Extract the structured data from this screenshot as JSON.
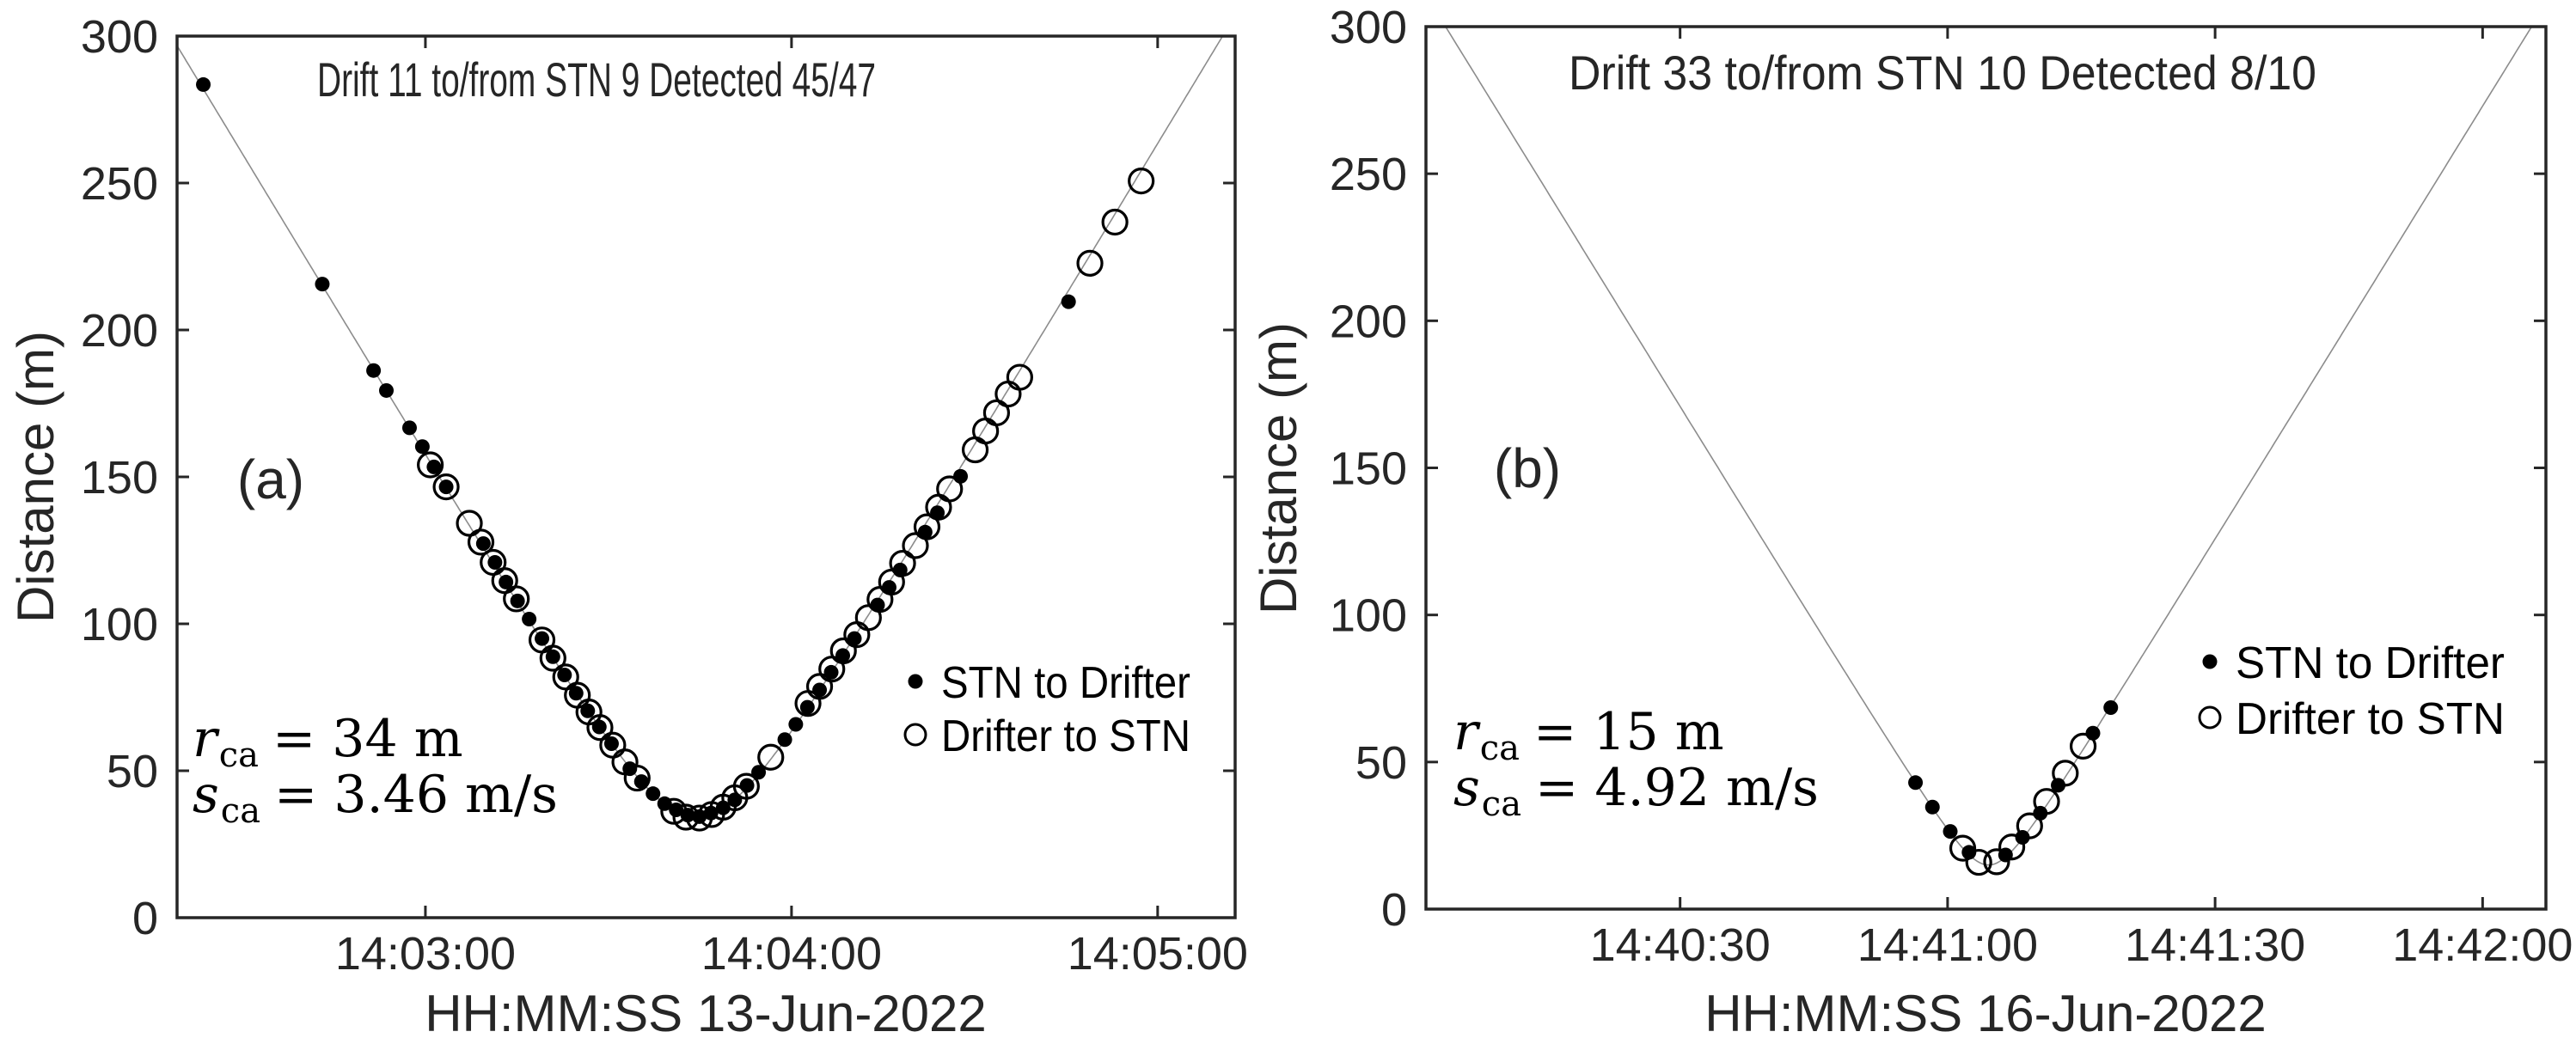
{
  "chart_data": [
    {
      "type": "scatter",
      "panel_label": "(a)",
      "title": "Drift 11 to/from STN 9 Detected 45/47",
      "xlabel": "HH:MM:SS 13-Jun-2022",
      "ylabel": "Distance (m)",
      "xlim": [
        "14:02:19.3",
        "14:05:12.7"
      ],
      "ylim": [
        0,
        300
      ],
      "xticks": [
        "14:03:00",
        "14:04:00",
        "14:05:00"
      ],
      "yticks": [
        0,
        50,
        100,
        150,
        200,
        250,
        300
      ],
      "grid": false,
      "legend_position": "right",
      "annotation": {
        "r_label": "r",
        "r_sub": "ca",
        "r_value": "= 34 m",
        "s_label": "s",
        "s_sub": "ca",
        "s_value": "= 3.46 m/s"
      },
      "curve": {
        "r_ca": 34,
        "s_ca": 3.46,
        "t_ca": "14:03:44.5",
        "color": "#8c8c8c"
      },
      "series": [
        {
          "name": "STN to Drifter",
          "marker": "filled",
          "color": "#000000",
          "points": [
            [
              "14:02:23.6",
              283.5
            ],
            [
              "14:02:43.1",
              215.6
            ],
            [
              "14:02:51.5",
              186.2
            ],
            [
              "14:02:53.6",
              179.4
            ],
            [
              "14:02:57.4",
              166.7
            ],
            [
              "14:02:59.5",
              160.3
            ],
            [
              "14:03:01.4",
              153.4
            ],
            [
              "14:03:03.4",
              146.6
            ],
            [
              "14:03:09.5",
              127.3
            ],
            [
              "14:03:11.4",
              120.9
            ],
            [
              "14:03:13.2",
              114.2
            ],
            [
              "14:03:15.1",
              107.8
            ],
            [
              "14:03:17.0",
              101.6
            ],
            [
              "14:03:19.1",
              95.0
            ],
            [
              "14:03:20.9",
              88.8
            ],
            [
              "14:03:22.8",
              82.6
            ],
            [
              "14:03:24.7",
              76.4
            ],
            [
              "14:03:26.6",
              70.4
            ],
            [
              "14:03:28.5",
              64.9
            ],
            [
              "14:03:30.5",
              59.2
            ],
            [
              "14:03:33.5",
              50.7
            ],
            [
              "14:03:35.4",
              46.3
            ],
            [
              "14:03:37.3",
              42.2
            ],
            [
              "14:03:39.2",
              38.8
            ],
            [
              "14:03:41.1",
              36.7
            ],
            [
              "14:03:43.0",
              34.9
            ],
            [
              "14:03:44.9",
              34.4
            ],
            [
              "14:03:46.8",
              35.6
            ],
            [
              "14:03:48.8",
              37.4
            ],
            [
              "14:03:50.7",
              40.1
            ],
            [
              "14:03:52.7",
              45.0
            ],
            [
              "14:03:54.6",
              49.5
            ],
            [
              "14:03:58.9",
              60.6
            ],
            [
              "14:04:00.7",
              65.8
            ],
            [
              "14:04:02.6",
              71.6
            ],
            [
              "14:04:04.6",
              77.5
            ],
            [
              "14:04:06.5",
              83.5
            ],
            [
              "14:04:08.4",
              89.2
            ],
            [
              "14:04:10.3",
              95.0
            ],
            [
              "14:04:14.1",
              106.4
            ],
            [
              "14:04:16.0",
              112.4
            ],
            [
              "14:04:17.8",
              118.3
            ],
            [
              "14:04:21.9",
              131.2
            ],
            [
              "14:04:23.9",
              137.8
            ],
            [
              "14:04:27.7",
              150.2
            ],
            [
              "14:04:45.4",
              209.6
            ]
          ]
        },
        {
          "name": "Drifter to STN",
          "marker": "open",
          "color": "#000000",
          "points": [
            [
              "14:03:00.8",
              154.1
            ],
            [
              "14:03:03.4",
              146.6
            ],
            [
              "14:03:07.2",
              134.2
            ],
            [
              "14:03:09.1",
              127.8
            ],
            [
              "14:03:11.1",
              120.9
            ],
            [
              "14:03:13.0",
              114.7
            ],
            [
              "14:03:14.9",
              108.5
            ],
            [
              "14:03:19.1",
              94.5
            ],
            [
              "14:03:20.9",
              88.3
            ],
            [
              "14:03:23.0",
              81.9
            ],
            [
              "14:03:24.9",
              75.7
            ],
            [
              "14:03:26.8",
              70.0
            ],
            [
              "14:03:28.6",
              64.7
            ],
            [
              "14:03:30.7",
              58.7
            ],
            [
              "14:03:32.7",
              53.0
            ],
            [
              "14:03:34.7",
              47.5
            ],
            [
              "14:03:40.7",
              36.2
            ],
            [
              "14:03:42.7",
              34.2
            ],
            [
              "14:03:44.9",
              33.9
            ],
            [
              "14:03:46.9",
              35.1
            ],
            [
              "14:03:48.8",
              37.6
            ],
            [
              "14:03:50.7",
              40.8
            ],
            [
              "14:03:52.6",
              44.7
            ],
            [
              "14:03:56.6",
              54.6
            ],
            [
              "14:04:02.7",
              72.9
            ],
            [
              "14:04:04.6",
              78.7
            ],
            [
              "14:04:06.6",
              84.6
            ],
            [
              "14:04:08.5",
              90.8
            ],
            [
              "14:04:10.7",
              96.3
            ],
            [
              "14:04:12.6",
              102.1
            ],
            [
              "14:04:14.5",
              108.3
            ],
            [
              "14:04:16.4",
              114.2
            ],
            [
              "14:04:18.2",
              120.6
            ],
            [
              "14:04:20.3",
              126.6
            ],
            [
              "14:04:22.2",
              133.0
            ],
            [
              "14:04:24.1",
              139.7
            ],
            [
              "14:04:25.9",
              145.9
            ],
            [
              "14:04:30.1",
              159.2
            ],
            [
              "14:04:31.8",
              165.6
            ],
            [
              "14:04:33.6",
              171.8
            ],
            [
              "14:04:35.5",
              178.2
            ],
            [
              "14:04:37.4",
              183.9
            ],
            [
              "14:04:48.9",
              222.7
            ],
            [
              "14:04:53.0",
              236.7
            ],
            [
              "14:04:57.3",
              250.7
            ]
          ]
        }
      ]
    },
    {
      "type": "scatter",
      "panel_label": "(b)",
      "title": "Drift 33 to/from STN 10 Detected 8/10",
      "xlabel": "HH:MM:SS 16-Jun-2022",
      "ylabel": "Distance (m)",
      "xlim": [
        "14:40:01.5",
        "14:42:07.1"
      ],
      "ylim": [
        0,
        300
      ],
      "xticks": [
        "14:40:30",
        "14:41:00",
        "14:41:30",
        "14:42:00"
      ],
      "yticks": [
        0,
        50,
        100,
        150,
        200,
        250,
        300
      ],
      "grid": false,
      "legend_position": "right",
      "annotation": {
        "r_label": "r",
        "r_sub": "ca",
        "r_value": "= 15 m",
        "s_label": "s",
        "s_sub": "ca",
        "s_value": "= 4.92 m/s"
      },
      "curve": {
        "r_ca": 15,
        "s_ca": 4.92,
        "t_ca": "14:41:04.6",
        "color": "#8c8c8c"
      },
      "series": [
        {
          "name": "STN to Drifter",
          "marker": "filled",
          "color": "#000000",
          "points": [
            [
              "14:40:56.4",
              43.0
            ],
            [
              "14:40:58.3",
              34.7
            ],
            [
              "14:41:00.3",
              26.4
            ],
            [
              "14:41:02.4",
              19.3
            ],
            [
              "14:41:06.5",
              18.4
            ],
            [
              "14:41:08.4",
              24.4
            ],
            [
              "14:41:10.4",
              32.6
            ],
            [
              "14:41:12.4",
              42.1
            ],
            [
              "14:41:16.3",
              59.8
            ],
            [
              "14:41:18.3",
              68.5
            ]
          ]
        },
        {
          "name": "Drifter to STN",
          "marker": "open",
          "color": "#000000",
          "points": [
            [
              "14:41:01.7",
              20.7
            ],
            [
              "14:41:03.5",
              15.9
            ],
            [
              "14:41:05.5",
              16.1
            ],
            [
              "14:41:07.2",
              21.1
            ],
            [
              "14:41:09.2",
              28.3
            ],
            [
              "14:41:11.1",
              36.6
            ],
            [
              "14:41:13.2",
              46.2
            ],
            [
              "14:41:15.2",
              55.4
            ]
          ]
        }
      ]
    }
  ]
}
